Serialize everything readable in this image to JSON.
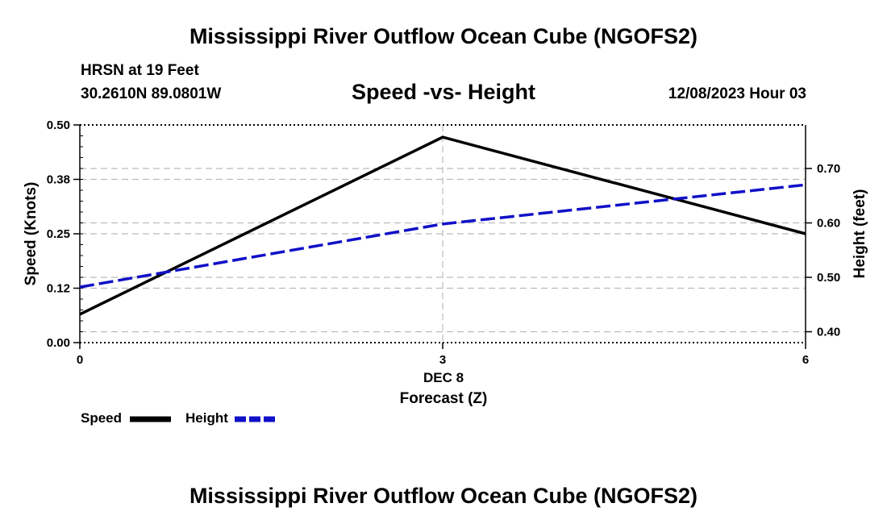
{
  "page_title": "Mississippi River Outflow Ocean Cube (NGOFS2)",
  "station": {
    "name": "HRSN at 19 Feet",
    "coords": "30.2610N  89.0801W",
    "datetime": "12/08/2023 Hour 03"
  },
  "footer_title": "Mississippi River Outflow Ocean Cube (NGOFS2)",
  "chart_data": {
    "type": "line",
    "title": "Speed -vs- Height",
    "xlabel": "Forecast (Z)",
    "xsublabel": "DEC 8",
    "xlim": [
      0,
      6
    ],
    "xticks": [
      0,
      3,
      6
    ],
    "xtick_labels": [
      "0",
      "3",
      "6"
    ],
    "ylabel_left": "Speed (Knots)",
    "ylim_left": [
      0,
      0.5
    ],
    "yticks_left": [
      0,
      0.125,
      0.25,
      0.375,
      0.5
    ],
    "ytick_labels_left": [
      "0.00",
      "0.12",
      "0.25",
      "0.38",
      "0.50"
    ],
    "ylabel_right": "Height (feet)",
    "ylim_right": [
      0.38,
      0.78
    ],
    "yticks_right": [
      0.4,
      0.5,
      0.6,
      0.7
    ],
    "ytick_labels_right": [
      "0.40",
      "0.50",
      "0.60",
      "0.70"
    ],
    "grid": true,
    "legend_position": "bottom-left",
    "series": [
      {
        "name": "Speed",
        "axis": "left",
        "color": "#000000",
        "style": "solid",
        "x": [
          0,
          3,
          6
        ],
        "values": [
          0.065,
          0.472,
          0.25
        ]
      },
      {
        "name": "Height",
        "axis": "right",
        "color": "#1010c8",
        "style": "dashed",
        "x": [
          0,
          3,
          6
        ],
        "values": [
          0.482,
          0.598,
          0.67
        ]
      }
    ]
  }
}
